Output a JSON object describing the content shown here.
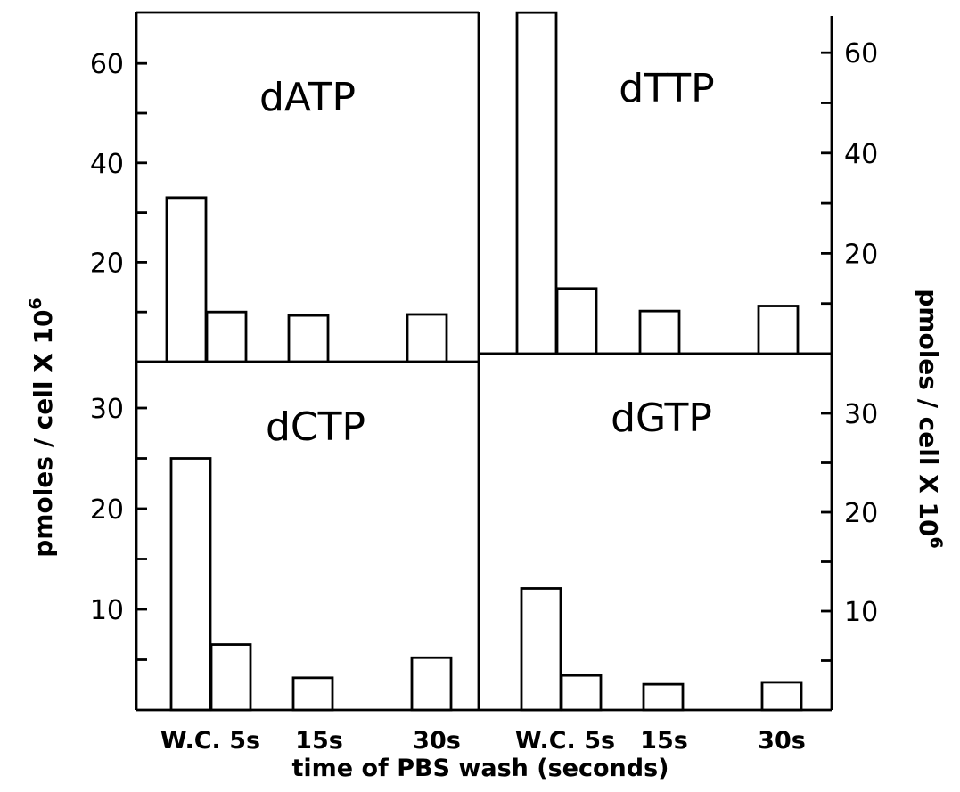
{
  "chart_data": {
    "type": "bar",
    "xlabel": "time of PBS wash (seconds)",
    "ylabel": "pmoles / cell X 10",
    "ylabel_exponent": "6",
    "categories": [
      "W.C.",
      "5s",
      "15s",
      "30s"
    ],
    "x_tick_labels": {
      "left": [
        "W.C. 5s",
        "15s",
        "30s"
      ],
      "right": [
        "W.C. 5s",
        "15s",
        "30s"
      ]
    },
    "panels": [
      {
        "title": "dATP",
        "position": "top-left",
        "ylim": [
          0,
          70
        ],
        "y_ticks": [
          20,
          40,
          60
        ],
        "y_tick_labels": [
          "20",
          "40",
          "60"
        ],
        "values": [
          {
            "category": "W.C.",
            "value": 33
          },
          {
            "category": "5s",
            "value": 10
          },
          {
            "category": "15s",
            "value": 9.3
          },
          {
            "category": "30s",
            "value": 9.5
          }
        ]
      },
      {
        "title": "dTTP",
        "position": "top-right",
        "ylim": [
          0,
          70
        ],
        "y_ticks": [
          20,
          40,
          60
        ],
        "y_tick_labels": [
          "20",
          "40",
          "60"
        ],
        "values": [
          {
            "category": "W.C.",
            "value": 68
          },
          {
            "category": "5s",
            "value": 13
          },
          {
            "category": "15s",
            "value": 8.5
          },
          {
            "category": "30s",
            "value": 9.5
          }
        ]
      },
      {
        "title": "dCTP",
        "position": "bottom-left",
        "ylim": [
          0,
          35
        ],
        "y_ticks": [
          10,
          20,
          30
        ],
        "y_tick_labels": [
          "10",
          "20",
          "30"
        ],
        "values": [
          {
            "category": "W.C.",
            "value": 25
          },
          {
            "category": "5s",
            "value": 6.5
          },
          {
            "category": "15s",
            "value": 3.2
          },
          {
            "category": "30s",
            "value": 5.2
          }
        ]
      },
      {
        "title": "dGTP",
        "position": "bottom-right",
        "ylim": [
          0,
          35
        ],
        "y_ticks": [
          10,
          20,
          30
        ],
        "y_tick_labels": [
          "10",
          "20",
          "30"
        ],
        "values": [
          {
            "category": "W.C.",
            "value": 12.3
          },
          {
            "category": "5s",
            "value": 3.5
          },
          {
            "category": "15s",
            "value": 2.6
          },
          {
            "category": "30s",
            "value": 2.8
          }
        ]
      }
    ]
  }
}
